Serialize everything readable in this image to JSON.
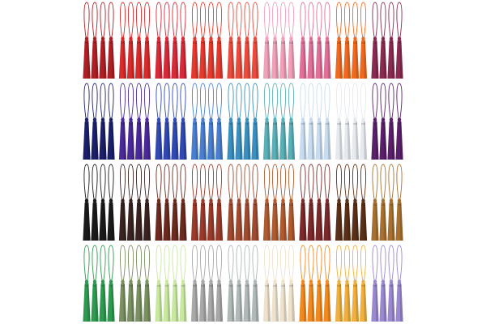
{
  "tassel_colors": [
    [
      "#b01f24",
      "#d92b2b",
      "#d42a3a",
      "#e43a2e",
      "#ec4a3c",
      "#f0a0b8",
      "#e07098",
      "#ef6a20",
      "#8a2a50"
    ],
    [
      "#1c1f6a",
      "#4a2a9a",
      "#3048b0",
      "#4a7fd0",
      "#3a8fc0",
      "#5ab0b8",
      "#c8dcef",
      "#e6e9ee",
      "#5a1f6a"
    ],
    [
      "#1a1a1a",
      "#3a2220",
      "#6a2a1e",
      "#9a3a2a",
      "#a04a30",
      "#b05a30",
      "#7a2a2a",
      "#5a3018",
      "#a87030"
    ],
    [
      "#2e9a50",
      "#7a9060",
      "#c8e8a0",
      "#a8a8a8",
      "#b0b8b8",
      "#eee2cc",
      "#f08a20",
      "#f0b040",
      "#9a88d0"
    ]
  ]
}
